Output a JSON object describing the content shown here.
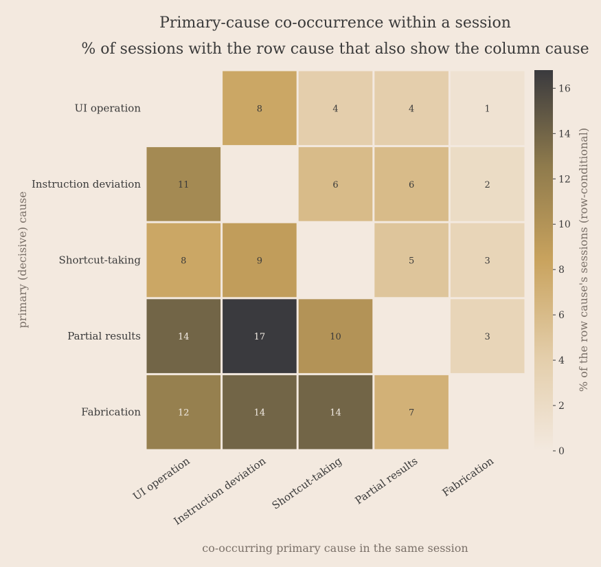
{
  "chart_data": {
    "type": "heatmap",
    "title": "Primary-cause co-occurrence within a session",
    "subtitle": "% of sessions with the row cause that also show the column cause",
    "xlabel": "co-occurring primary cause in the same session",
    "ylabel": "primary (decisive) cause",
    "rows": [
      "UI operation",
      "Instruction deviation",
      "Shortcut-taking",
      "Partial results",
      "Fabrication"
    ],
    "columns": [
      "UI operation",
      "Instruction deviation",
      "Shortcut-taking",
      "Partial results",
      "Fabrication"
    ],
    "values": [
      [
        null,
        8,
        4,
        4,
        1
      ],
      [
        11,
        null,
        6,
        6,
        2
      ],
      [
        8,
        9,
        null,
        5,
        3
      ],
      [
        14,
        17,
        10,
        null,
        3
      ],
      [
        12,
        14,
        14,
        7,
        null
      ]
    ],
    "colorbar": {
      "label": "% of the row cause's sessions (row-conditional)",
      "range": [
        0,
        16.8
      ],
      "ticks": [
        0,
        2,
        4,
        6,
        8,
        10,
        12,
        14,
        16
      ],
      "colors": [
        "#f3e9df",
        "#e3cda9",
        "#c9a35e",
        "#8e7a4c",
        "#3a3a3e"
      ]
    }
  }
}
